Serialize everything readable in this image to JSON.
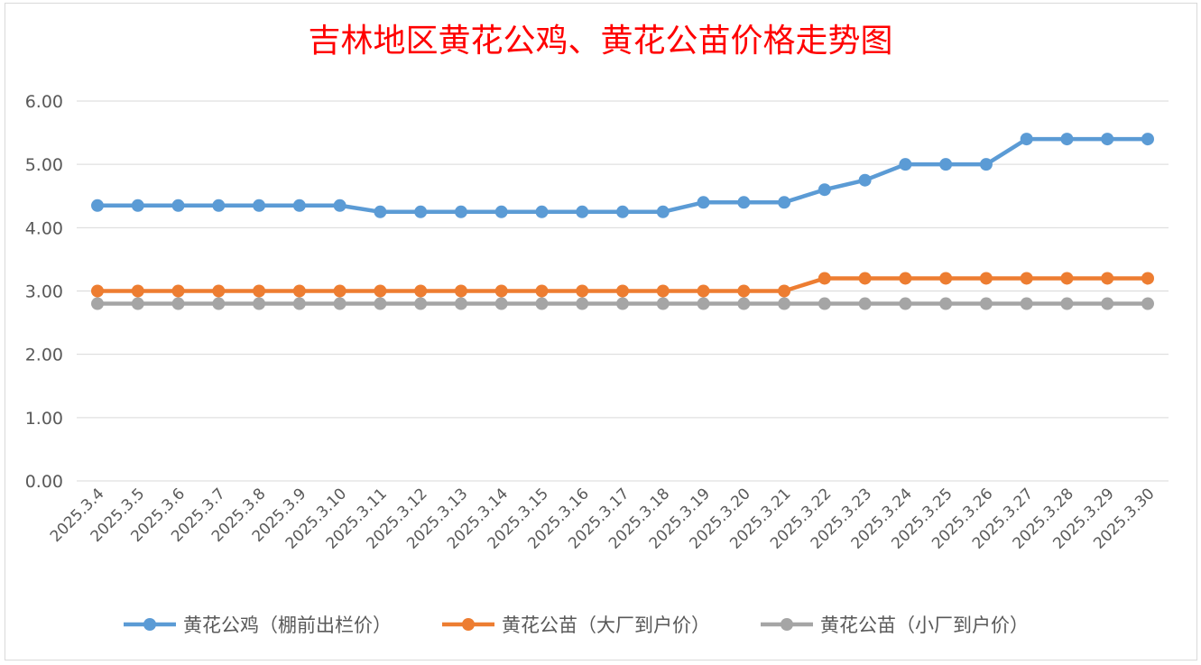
{
  "chart_data": {
    "type": "line",
    "title": "吉林地区黄花公鸡、黄花公苗价格走势图",
    "xlabel": "",
    "ylabel": "",
    "ylim": [
      0,
      6
    ],
    "y_ticks": [
      "0.00",
      "1.00",
      "2.00",
      "3.00",
      "4.00",
      "5.00",
      "6.00"
    ],
    "grid": true,
    "legend_position": "bottom",
    "categories": [
      "2025.3.4",
      "2025.3.5",
      "2025.3.6",
      "2025.3.7",
      "2025.3.8",
      "2025.3.9",
      "2025.3.10",
      "2025.3.11",
      "2025.3.12",
      "2025.3.13",
      "2025.3.14",
      "2025.3.15",
      "2025.3.16",
      "2025.3.17",
      "2025.3.18",
      "2025.3.19",
      "2025.3.20",
      "2025.3.21",
      "2025.3.22",
      "2025.3.23",
      "2025.3.24",
      "2025.3.25",
      "2025.3.26",
      "2025.3.27",
      "2025.3.28",
      "2025.3.29",
      "2025.3.30"
    ],
    "series": [
      {
        "name": "黄花公鸡（棚前出栏价）",
        "color": "#5b9bd5",
        "values": [
          4.35,
          4.35,
          4.35,
          4.35,
          4.35,
          4.35,
          4.35,
          4.25,
          4.25,
          4.25,
          4.25,
          4.25,
          4.25,
          4.25,
          4.25,
          4.4,
          4.4,
          4.4,
          4.6,
          4.75,
          5.0,
          5.0,
          5.0,
          5.4,
          5.4,
          5.4,
          5.4
        ]
      },
      {
        "name": "黄花公苗（大厂到户价）",
        "color": "#ed7d31",
        "values": [
          3.0,
          3.0,
          3.0,
          3.0,
          3.0,
          3.0,
          3.0,
          3.0,
          3.0,
          3.0,
          3.0,
          3.0,
          3.0,
          3.0,
          3.0,
          3.0,
          3.0,
          3.0,
          3.2,
          3.2,
          3.2,
          3.2,
          3.2,
          3.2,
          3.2,
          3.2,
          3.2
        ]
      },
      {
        "name": "黄花公苗（小厂到户价）",
        "color": "#a5a5a5",
        "values": [
          2.8,
          2.8,
          2.8,
          2.8,
          2.8,
          2.8,
          2.8,
          2.8,
          2.8,
          2.8,
          2.8,
          2.8,
          2.8,
          2.8,
          2.8,
          2.8,
          2.8,
          2.8,
          2.8,
          2.8,
          2.8,
          2.8,
          2.8,
          2.8,
          2.8,
          2.8,
          2.8
        ]
      }
    ]
  }
}
